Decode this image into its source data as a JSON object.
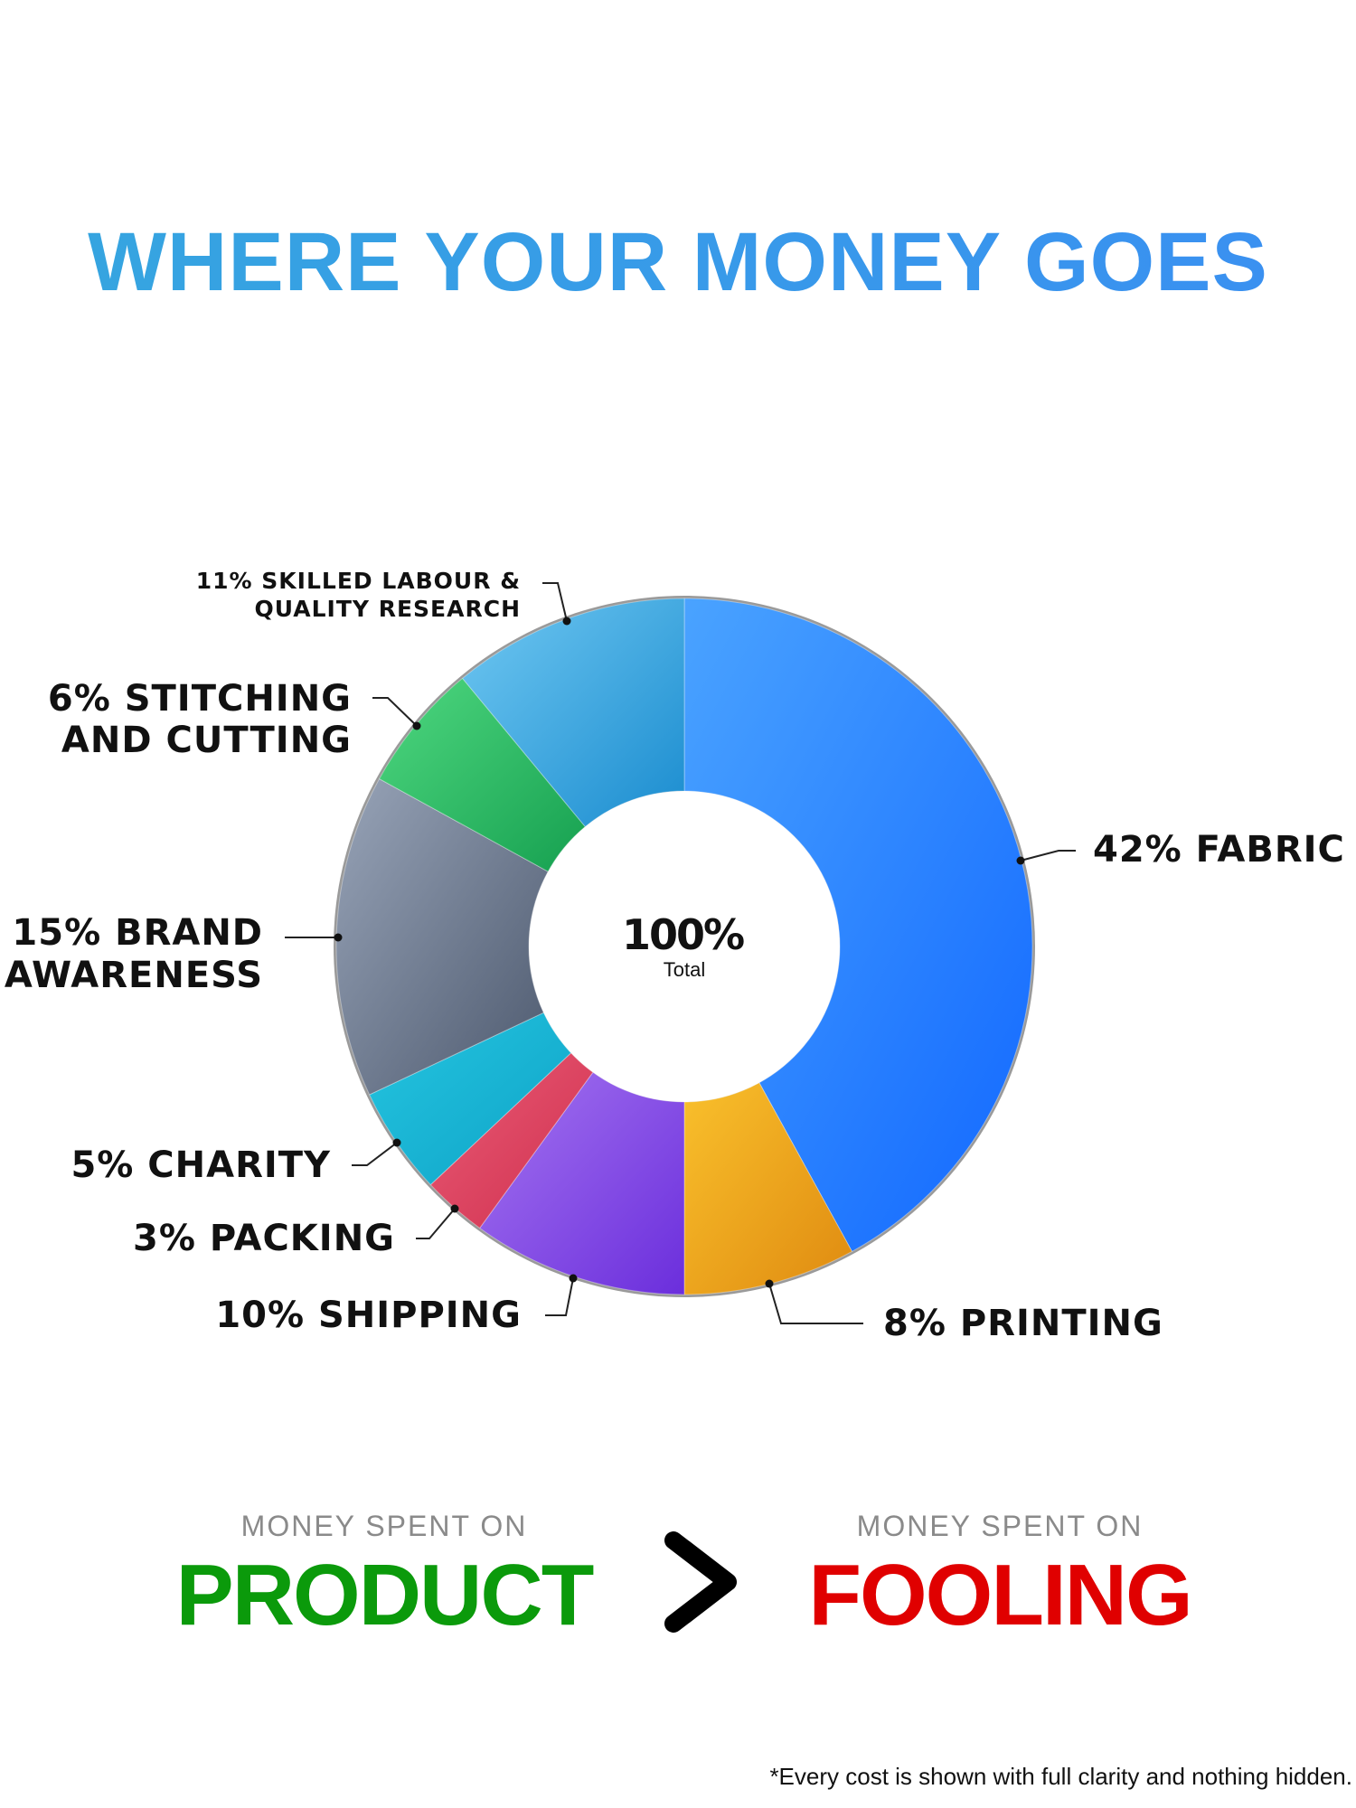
{
  "title": "WHERE YOUR MONEY GOES",
  "chart_data": {
    "type": "donut",
    "title": "WHERE YOUR MONEY GOES",
    "center_value": "100%",
    "center_label": "Total",
    "slices": [
      {
        "name": "FABRIC",
        "value": 42,
        "label": [
          "42% FABRIC"
        ],
        "colors": [
          "#4aa3ff",
          "#1167ff"
        ]
      },
      {
        "name": "PRINTING",
        "value": 8,
        "label": [
          "8% PRINTING"
        ],
        "colors": [
          "#f9c02c",
          "#df8a10"
        ]
      },
      {
        "name": "SHIPPING",
        "value": 10,
        "label": [
          "10% SHIPPING"
        ],
        "colors": [
          "#a474f0",
          "#6b2edc"
        ]
      },
      {
        "name": "PACKING",
        "value": 3,
        "label": [
          "3% PACKING"
        ],
        "colors": [
          "#ea5c76",
          "#cf2f4e"
        ]
      },
      {
        "name": "CHARITY",
        "value": 5,
        "label": [
          "5% CHARITY"
        ],
        "colors": [
          "#25c5e0",
          "#0ea3c7"
        ]
      },
      {
        "name": "BRAND AWARENESS",
        "value": 15,
        "label": [
          "15% BRAND",
          "AWARENESS"
        ],
        "colors": [
          "#98a4b8",
          "#4d596e"
        ]
      },
      {
        "name": "STITCHING AND CUTTING",
        "value": 6,
        "label": [
          "6% STITCHING",
          "AND CUTTING"
        ],
        "colors": [
          "#4fd880",
          "#16a050"
        ]
      },
      {
        "name": "SKILLED LABOUR & QUALITY RESEARCH",
        "value": 11,
        "label": [
          "11% SKILLED LABOUR &",
          "QUALITY RESEARCH"
        ],
        "colors": [
          "#70c8f2",
          "#1a8ccf"
        ]
      }
    ]
  },
  "comparison": {
    "left_caption": "MONEY SPENT ON",
    "left_word": "PRODUCT",
    "left_color": "#0b9a0b",
    "operator": ">",
    "right_caption": "MONEY SPENT ON",
    "right_word": "FOOLING",
    "right_color": "#e00000"
  },
  "footnote": "*Every cost is shown with full clarity and nothing hidden."
}
